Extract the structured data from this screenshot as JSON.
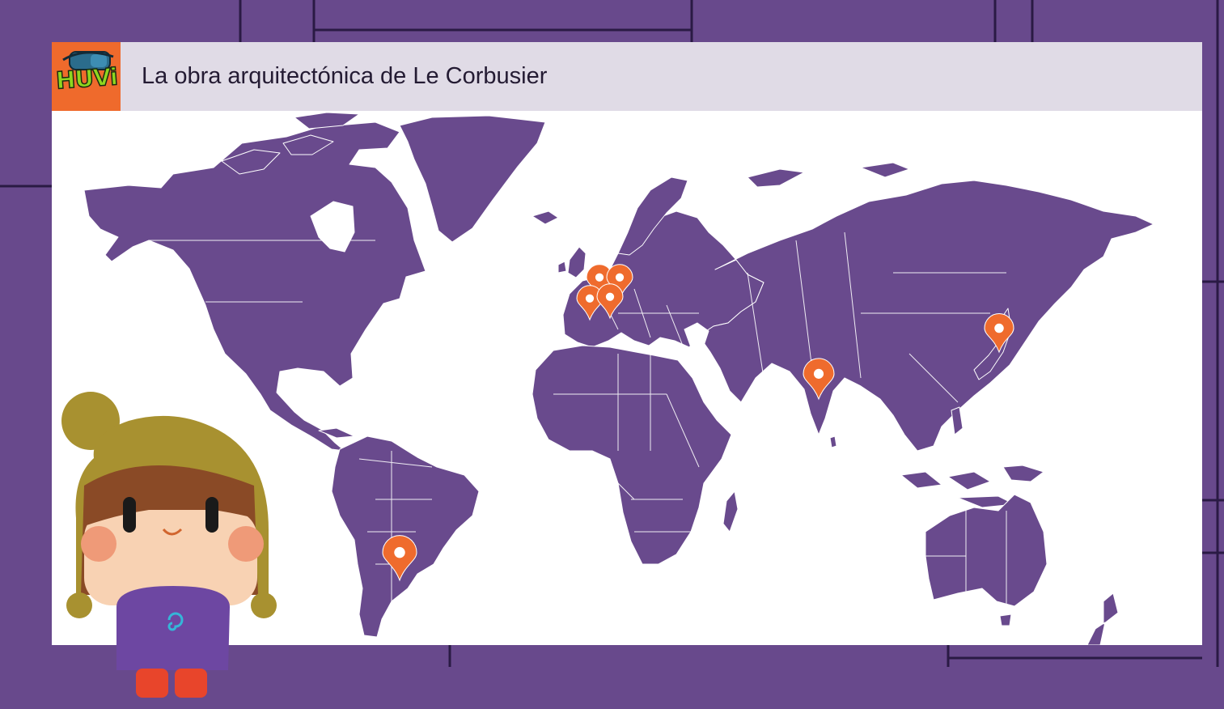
{
  "header": {
    "logo_text": "HUVi",
    "title": "La obra arquitectónica de Le Corbusier"
  },
  "colors": {
    "background": "#68498c",
    "land": "#694a8d",
    "marker": "#ef6b2d",
    "header_bg": "#e0dbe6",
    "logo_bg": "#ef6a2c"
  },
  "map": {
    "markers": [
      {
        "name": "marker-france-north"
      },
      {
        "name": "marker-germany"
      },
      {
        "name": "marker-france-west"
      },
      {
        "name": "marker-france-east"
      },
      {
        "name": "marker-india"
      },
      {
        "name": "marker-japan"
      },
      {
        "name": "marker-argentina"
      }
    ]
  },
  "mascot": {
    "icon": "girl-mascot"
  }
}
